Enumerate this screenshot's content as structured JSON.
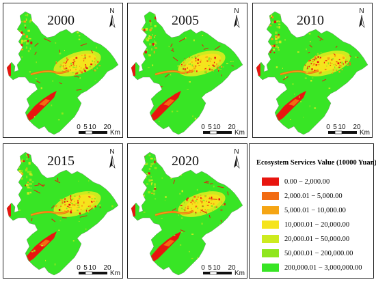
{
  "panels": [
    {
      "year": "2000"
    },
    {
      "year": "2005"
    },
    {
      "year": "2010"
    },
    {
      "year": "2015"
    },
    {
      "year": "2020"
    }
  ],
  "north_label": "N",
  "scale_bar": {
    "ticks": [
      "0",
      "5",
      "10",
      "20"
    ],
    "unit": "Km"
  },
  "legend": {
    "title": "Ecosystem Services Value (10000 Yuan)",
    "classes": [
      {
        "label": "0.00 − 2,000.00",
        "color": "#e8150f"
      },
      {
        "label": "2,000.01 − 5,000.00",
        "color": "#f26b12"
      },
      {
        "label": "5,000.01 − 10,000.00",
        "color": "#f5a514"
      },
      {
        "label": "10,000.01 − 20,000.00",
        "color": "#f5e41c"
      },
      {
        "label": "20,000.01 − 50,000.00",
        "color": "#cdeb1f"
      },
      {
        "label": "50,000.01 − 200,000.00",
        "color": "#8fe61d"
      },
      {
        "label": "200,000.01 − 3,000,000.00",
        "color": "#38e525"
      }
    ]
  }
}
